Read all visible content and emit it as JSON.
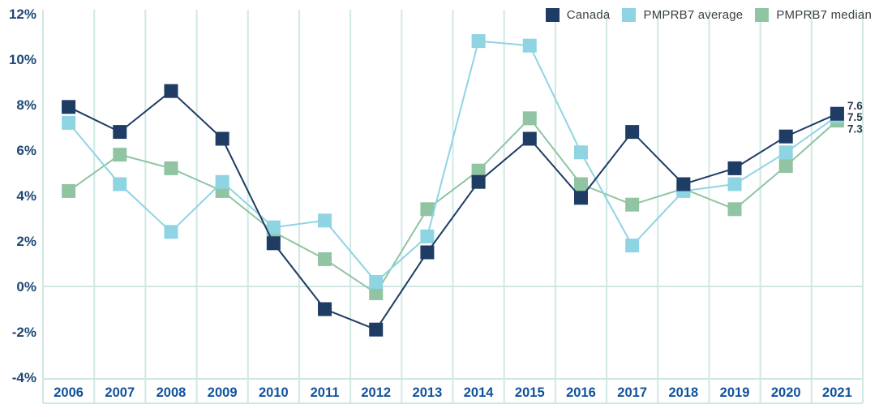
{
  "chart_data": {
    "type": "line",
    "title": "",
    "xlabel": "",
    "ylabel": "",
    "categories": [
      "2006",
      "2007",
      "2008",
      "2009",
      "2010",
      "2011",
      "2012",
      "2013",
      "2014",
      "2015",
      "2016",
      "2017",
      "2018",
      "2019",
      "2020",
      "2021"
    ],
    "series": [
      {
        "name": "Canada",
        "color": "#1e3c64",
        "values": [
          7.9,
          6.8,
          8.6,
          6.5,
          1.9,
          -1.0,
          -1.9,
          1.5,
          4.6,
          6.5,
          3.9,
          6.8,
          4.5,
          5.2,
          6.6,
          7.6
        ]
      },
      {
        "name": "PMPRB7 average",
        "color": "#8fd4e3",
        "values": [
          7.2,
          4.5,
          2.4,
          4.6,
          2.6,
          2.9,
          0.2,
          2.2,
          10.8,
          10.6,
          5.9,
          1.8,
          4.2,
          4.5,
          5.9,
          7.5
        ]
      },
      {
        "name": "PMPRB7 median",
        "color": "#90c4a2",
        "values": [
          4.2,
          5.8,
          5.2,
          4.2,
          2.4,
          1.2,
          -0.3,
          3.4,
          5.1,
          7.4,
          4.5,
          3.6,
          4.3,
          3.4,
          5.3,
          7.3
        ]
      }
    ],
    "end_labels": [
      {
        "series": "Canada",
        "text": "7.6"
      },
      {
        "series": "PMPRB7 average",
        "text": "7.5"
      },
      {
        "series": "PMPRB7 median",
        "text": "7.3"
      }
    ],
    "y_ticks": [
      {
        "label": "12%",
        "value": 12
      },
      {
        "label": "10%",
        "value": 10
      },
      {
        "label": "8%",
        "value": 8
      },
      {
        "label": "6%",
        "value": 6
      },
      {
        "label": "4%",
        "value": 4
      },
      {
        "label": "2%",
        "value": 2
      },
      {
        "label": "0%",
        "value": 0
      },
      {
        "label": "-2%",
        "value": -2
      },
      {
        "label": "-4%",
        "value": -4
      }
    ],
    "ylim": [
      -4.2,
      12.2
    ],
    "grid": {
      "vertical": true,
      "zero_line": true,
      "horizontal_other": false
    },
    "legend_position": "top-right",
    "marker": "square",
    "colors": {
      "grid": "#cfe8e3",
      "y_tick_text": "#1e4976",
      "x_tick_text": "#0f539e",
      "end_label_text": "#2c3a4a",
      "background": "#ffffff"
    }
  }
}
